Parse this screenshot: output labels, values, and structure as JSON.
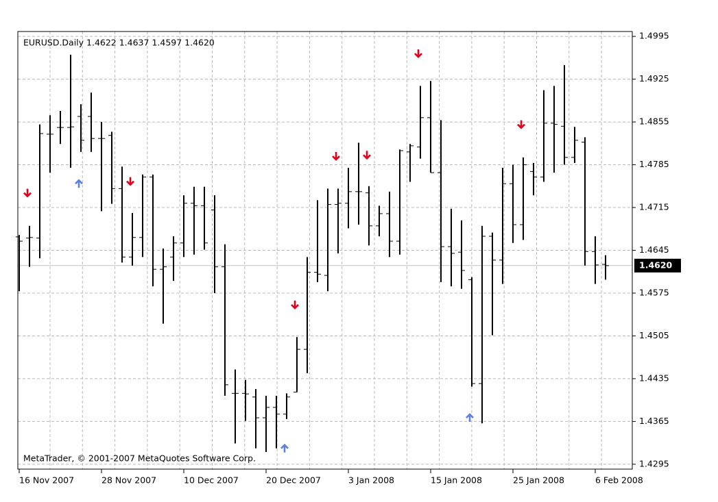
{
  "chart_data": {
    "type": "ohlc",
    "title": "EURUSD.Daily  1.4622 1.4637 1.4597 1.4620",
    "footer": "MetaTrader, © 2001-2007 MetaQuotes Software Corp.",
    "categories": [
      "16 Nov 2007",
      null,
      null,
      null,
      null,
      null,
      null,
      null,
      "28 Nov 2007",
      null,
      null,
      null,
      null,
      null,
      null,
      null,
      "10 Dec 2007",
      null,
      null,
      null,
      null,
      null,
      null,
      null,
      "20 Dec 2007",
      null,
      null,
      null,
      null,
      null,
      null,
      null,
      "3 Jan 2008",
      null,
      null,
      null,
      null,
      null,
      null,
      null,
      "15 Jan 2008",
      null,
      null,
      null,
      null,
      null,
      null,
      null,
      "25 Jan 2008",
      null,
      null,
      null,
      null,
      null,
      null,
      null,
      "6 Feb 2008",
      null
    ],
    "open": [
      1.4667,
      1.4665,
      1.4665,
      1.4835,
      1.4846,
      1.4846,
      1.4864,
      1.4864,
      1.4828,
      1.4833,
      1.4746,
      1.4634,
      1.4666,
      1.4765,
      1.4614,
      1.4634,
      1.4657,
      1.4722,
      1.4718,
      1.4711,
      1.4618,
      1.4411,
      1.4411,
      1.4405,
      1.4371,
      1.4388,
      1.4377,
      1.4413,
      1.4483,
      1.4609,
      1.4604,
      1.472,
      1.4722,
      1.4741,
      1.4739,
      1.4685,
      1.4705,
      1.466,
      1.4806,
      1.4814,
      1.4862,
      1.4772,
      1.4651,
      1.4642,
      1.4597,
      1.4427,
      1.4668,
      1.4629,
      1.4754,
      1.4687,
      1.4774,
      1.4765,
      1.4853,
      1.4848,
      1.4797,
      1.4822,
      1.4643,
      1.4622
    ],
    "high": [
      1.467,
      1.4685,
      1.4851,
      1.4866,
      1.4873,
      1.4965,
      1.4884,
      1.4903,
      1.4855,
      1.4839,
      1.4782,
      1.4706,
      1.4769,
      1.4769,
      1.4648,
      1.4668,
      1.4735,
      1.4749,
      1.4749,
      1.4735,
      1.4655,
      1.445,
      1.4433,
      1.4418,
      1.4407,
      1.4407,
      1.4411,
      1.4503,
      1.4634,
      1.4727,
      1.4746,
      1.4746,
      1.478,
      1.4821,
      1.475,
      1.4718,
      1.4741,
      1.481,
      1.4819,
      1.4914,
      1.4922,
      1.4858,
      1.4713,
      1.4694,
      1.4601,
      1.4685,
      1.4674,
      1.478,
      1.4785,
      1.4797,
      1.4788,
      1.4907,
      1.4914,
      1.4948,
      1.4847,
      1.483,
      1.4668,
      1.4637
    ],
    "low": [
      1.4578,
      1.4618,
      1.4632,
      1.4772,
      1.4819,
      1.478,
      1.4806,
      1.4806,
      1.4709,
      1.4721,
      1.4625,
      1.462,
      1.4634,
      1.4586,
      1.4525,
      1.4595,
      1.4634,
      1.4638,
      1.4646,
      1.4575,
      1.4407,
      1.4329,
      1.4366,
      1.4321,
      1.4315,
      1.4321,
      1.4369,
      1.4413,
      1.4444,
      1.4593,
      1.4578,
      1.464,
      1.4681,
      1.4687,
      1.4653,
      1.4668,
      1.4634,
      1.4638,
      1.4757,
      1.4795,
      1.4772,
      1.4593,
      1.4586,
      1.4582,
      1.4422,
      1.4362,
      1.4506,
      1.459,
      1.4657,
      1.4662,
      1.4735,
      1.4757,
      1.4772,
      1.4785,
      1.4788,
      1.462,
      1.459,
      1.4597
    ],
    "close": [
      1.466,
      1.4666,
      1.4836,
      1.4835,
      1.4846,
      1.4847,
      1.4825,
      1.4828,
      1.4828,
      1.4746,
      1.4634,
      1.4666,
      1.4765,
      1.4614,
      1.4618,
      1.4657,
      1.4722,
      1.4718,
      1.4657,
      1.4618,
      1.4425,
      1.4411,
      1.441,
      1.4371,
      1.4388,
      1.4377,
      1.4405,
      1.4483,
      1.4609,
      1.4606,
      1.472,
      1.4722,
      1.4741,
      1.4741,
      1.4685,
      1.4705,
      1.466,
      1.4808,
      1.4816,
      1.4862,
      1.4772,
      1.4651,
      1.464,
      1.4612,
      1.4427,
      1.4668,
      1.4629,
      1.4754,
      1.4687,
      1.4785,
      1.4765,
      1.4853,
      1.4851,
      1.4797,
      1.4825,
      1.4643,
      1.4621,
      1.462
    ],
    "color": "#000000",
    "signals": [
      {
        "index": 1,
        "direction": "down",
        "value": 1.4739
      },
      {
        "index": 6,
        "direction": "up",
        "value": 1.4754
      },
      {
        "index": 11,
        "direction": "down",
        "value": 1.4758
      },
      {
        "index": 26,
        "direction": "up",
        "value": 1.4321
      },
      {
        "index": 27,
        "direction": "down",
        "value": 1.4556
      },
      {
        "index": 31,
        "direction": "down",
        "value": 1.4799
      },
      {
        "index": 34,
        "direction": "down",
        "value": 1.4801
      },
      {
        "index": 39,
        "direction": "down",
        "value": 1.4967
      },
      {
        "index": 44,
        "direction": "up",
        "value": 1.4371
      },
      {
        "index": 49,
        "direction": "down",
        "value": 1.4851
      }
    ],
    "signal_colors": {
      "up": "#5b7fe3",
      "down": "#e0001b"
    },
    "current": {
      "value": 1.462,
      "label": "1.4620"
    },
    "ylim": [
      1.4287,
      1.5003
    ],
    "yticks": [
      1.4295,
      1.4365,
      1.4435,
      1.4505,
      1.4575,
      1.4645,
      1.4715,
      1.4785,
      1.4855,
      1.4925,
      1.4995
    ],
    "grid": true
  }
}
